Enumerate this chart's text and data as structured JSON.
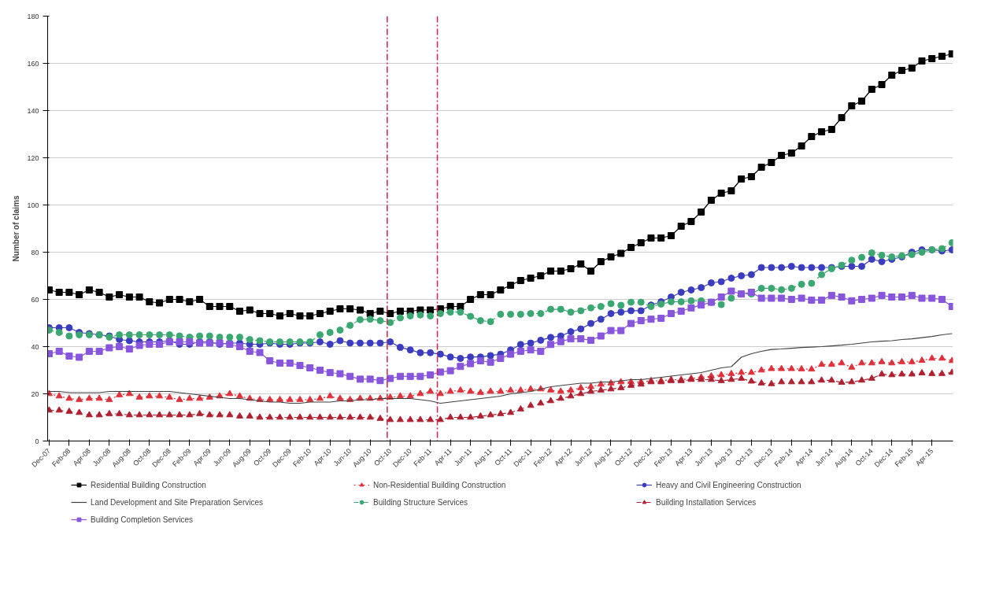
{
  "chart_data": {
    "type": "line",
    "ylabel": "Number of claims",
    "x": [
      "2007-12",
      "2008-01",
      "2008-02",
      "2008-03",
      "2008-04",
      "2008-05",
      "2008-06",
      "2008-07",
      "2008-08",
      "2008-09",
      "2008-10",
      "2008-11",
      "2008-12",
      "2009-01",
      "2009-02",
      "2009-03",
      "2009-04",
      "2009-05",
      "2009-06",
      "2009-07",
      "2009-08",
      "2009-09",
      "2009-10",
      "2009-11",
      "2009-12",
      "2010-01",
      "2010-02",
      "2010-03",
      "2010-04",
      "2010-05",
      "2010-06",
      "2010-07",
      "2010-08",
      "2010-09",
      "2010-10",
      "2010-11",
      "2010-12",
      "2011-01",
      "2011-02",
      "2011-03",
      "2011-04",
      "2011-05",
      "2011-06",
      "2011-07",
      "2011-08",
      "2011-09",
      "2011-10",
      "2011-11",
      "2011-12",
      "2012-01",
      "2012-02",
      "2012-03",
      "2012-04",
      "2012-05",
      "2012-06",
      "2012-07",
      "2012-08",
      "2012-09",
      "2012-10",
      "2012-11",
      "2012-12",
      "2013-01",
      "2013-02",
      "2013-03",
      "2013-04",
      "2013-05",
      "2013-06",
      "2013-07",
      "2013-08",
      "2013-09",
      "2013-10",
      "2013-11",
      "2013-12",
      "2014-01",
      "2014-02",
      "2014-03",
      "2014-04",
      "2014-05",
      "2014-06",
      "2014-07",
      "2014-08",
      "2014-09",
      "2014-10",
      "2014-11",
      "2014-12",
      "2015-01",
      "2015-02",
      "2015-03",
      "2015-04",
      "2015-05",
      "2015-06"
    ],
    "xlim": [
      "2007-12",
      "2015-06"
    ],
    "xticks": [
      {
        "value": "2007-12",
        "label": "Dec-07"
      },
      {
        "value": "2008-02",
        "label": "Feb-08"
      },
      {
        "value": "2008-04",
        "label": "Apr-08"
      },
      {
        "value": "2008-06",
        "label": "Jun-08"
      },
      {
        "value": "2008-08",
        "label": "Aug-08"
      },
      {
        "value": "2008-10",
        "label": "Oct-08"
      },
      {
        "value": "2008-12",
        "label": "Dec-08"
      },
      {
        "value": "2009-02",
        "label": "Feb-09"
      },
      {
        "value": "2009-04",
        "label": "Apr-09"
      },
      {
        "value": "2009-06",
        "label": "Jun-09"
      },
      {
        "value": "2009-08",
        "label": "Aug-09"
      },
      {
        "value": "2009-10",
        "label": "Oct-09"
      },
      {
        "value": "2009-12",
        "label": "Dec-09"
      },
      {
        "value": "2010-02",
        "label": "Feb-10"
      },
      {
        "value": "2010-04",
        "label": "Apr-10"
      },
      {
        "value": "2010-06",
        "label": "Jun-10"
      },
      {
        "value": "2010-08",
        "label": "Aug-10"
      },
      {
        "value": "2010-10",
        "label": "Oct-10"
      },
      {
        "value": "2010-12",
        "label": "Dec-10"
      },
      {
        "value": "2011-02",
        "label": "Feb-11"
      },
      {
        "value": "2011-04",
        "label": "Apr-11"
      },
      {
        "value": "2011-06",
        "label": "Jun-11"
      },
      {
        "value": "2011-08",
        "label": "Aug-11"
      },
      {
        "value": "2011-10",
        "label": "Oct-11"
      },
      {
        "value": "2011-12",
        "label": "Dec-11"
      },
      {
        "value": "2012-02",
        "label": "Feb-12"
      },
      {
        "value": "2012-04",
        "label": "Apr-12"
      },
      {
        "value": "2012-06",
        "label": "Jun-12"
      },
      {
        "value": "2012-08",
        "label": "Aug-12"
      },
      {
        "value": "2012-10",
        "label": "Oct-12"
      },
      {
        "value": "2012-12",
        "label": "Dec-12"
      },
      {
        "value": "2013-02",
        "label": "Feb-13"
      },
      {
        "value": "2013-04",
        "label": "Apr-13"
      },
      {
        "value": "2013-06",
        "label": "Jun-13"
      },
      {
        "value": "2013-08",
        "label": "Aug-13"
      },
      {
        "value": "2013-10",
        "label": "Oct-13"
      },
      {
        "value": "2013-12",
        "label": "Dec-13"
      },
      {
        "value": "2014-02",
        "label": "Feb-14"
      },
      {
        "value": "2014-04",
        "label": "Apr-14"
      },
      {
        "value": "2014-06",
        "label": "Jun-14"
      },
      {
        "value": "2014-08",
        "label": "Aug-14"
      },
      {
        "value": "2014-10",
        "label": "Oct-14"
      },
      {
        "value": "2014-12",
        "label": "Dec-14"
      },
      {
        "value": "2015-02",
        "label": "Feb-15"
      },
      {
        "value": "2015-04",
        "label": "Apr-15"
      }
    ],
    "ylim": [
      0,
      180
    ],
    "yticks": [
      0,
      20,
      40,
      60,
      80,
      100,
      120,
      140,
      160,
      180
    ],
    "grid": "y",
    "legend": "bottom",
    "ref_lines": [
      {
        "axis": "x",
        "value": "2010-09-22",
        "color": "#cc2244",
        "line_style": "dashed"
      },
      {
        "axis": "x",
        "value": "2011-02-22",
        "color": "#cc2244",
        "line_style": "dashed"
      }
    ],
    "series": [
      {
        "name": "Residential Building Construction",
        "color": "#000000",
        "marker": "square",
        "line_style": "solid",
        "values": [
          64,
          63,
          63,
          62,
          64,
          63,
          61,
          62,
          61,
          61,
          59,
          58.5,
          60,
          60,
          59,
          60,
          57,
          57,
          57,
          55,
          55.5,
          54,
          54,
          53,
          54,
          53,
          53,
          54,
          55,
          56,
          56,
          55.5,
          54,
          55,
          54,
          55,
          55,
          55.5,
          55.5,
          56,
          57,
          57,
          60,
          62,
          62,
          64,
          66,
          68,
          69,
          70,
          72,
          72,
          73,
          75,
          72,
          76,
          78,
          79.5,
          82,
          84,
          86,
          86,
          87,
          91,
          93,
          97,
          102,
          105,
          106,
          111,
          112,
          116,
          118,
          121,
          122,
          125,
          129,
          131,
          132,
          137,
          142,
          144,
          149,
          151,
          155,
          157,
          158,
          161,
          162,
          163,
          164
        ]
      },
      {
        "name": "Non-Residential Building Construction",
        "color": "#e0303a",
        "marker": "triangle",
        "line_style": "dotted",
        "values": [
          20,
          19,
          18,
          17.5,
          18,
          18,
          17.5,
          19.5,
          20,
          18.5,
          19,
          19,
          18.5,
          17.5,
          18,
          18,
          18.5,
          19,
          20,
          19,
          18,
          17.5,
          17.5,
          17.5,
          17.5,
          17.5,
          17.5,
          18,
          19,
          18,
          17.5,
          18,
          18,
          18,
          18.5,
          19,
          19,
          20,
          21,
          20,
          21,
          21.5,
          21,
          20.5,
          21,
          21,
          21.5,
          21.5,
          22,
          22,
          21.5,
          21,
          21.5,
          22.5,
          23,
          24,
          24.5,
          25,
          25,
          25,
          25.5,
          25.5,
          26,
          26,
          26.5,
          27,
          27.5,
          28,
          28.5,
          29,
          29,
          30,
          30.6,
          30.6,
          30.6,
          30.5,
          30.4,
          32.4,
          32.4,
          33,
          31.2,
          33,
          33,
          33.5,
          33,
          33.5,
          33.5,
          34.1,
          35,
          35,
          34
        ]
      },
      {
        "name": "Heavy and Civil Engineering Construction",
        "color": "#3c3cc0",
        "marker": "circle",
        "line_style": "solid",
        "values": [
          48,
          48,
          48,
          46,
          45.5,
          45,
          44.5,
          43,
          42.5,
          42,
          42,
          42,
          42.5,
          41,
          41,
          42,
          42,
          41,
          41.5,
          41.5,
          41,
          41,
          41.5,
          41,
          41,
          41.5,
          41.5,
          42,
          41,
          42.5,
          41.5,
          41.5,
          41.5,
          41.5,
          42,
          39.7,
          38.6,
          37.4,
          37.4,
          36.8,
          35.6,
          35,
          35.6,
          35.6,
          36.2,
          36.8,
          38.6,
          40.9,
          41.5,
          42.7,
          43.9,
          44.5,
          46.3,
          47.5,
          49.8,
          51.6,
          54,
          54.6,
          55.2,
          55.2,
          57.6,
          59,
          61,
          63,
          64,
          65,
          67,
          67.5,
          69,
          70,
          70.5,
          73.5,
          73.5,
          73.5,
          74,
          73.5,
          73.5,
          73.5,
          73.5,
          74,
          74,
          74,
          77,
          76,
          77,
          78,
          80,
          81,
          81,
          80.5,
          81
        ]
      },
      {
        "name": "Land Development and Site Preparation Services",
        "color": "#404040",
        "marker": "none",
        "line_style": "solid",
        "values": [
          21,
          21,
          20.5,
          20.5,
          20.5,
          20.5,
          21,
          21,
          21,
          21,
          21,
          21,
          21,
          20.5,
          20,
          19.5,
          19,
          18.5,
          18,
          18,
          17.5,
          17,
          16.5,
          16.5,
          16,
          16,
          16.5,
          16.5,
          16.5,
          17,
          17,
          17.5,
          17.5,
          18,
          18,
          18,
          18,
          17.5,
          17,
          16,
          16.5,
          17,
          17.5,
          18,
          18.5,
          19,
          20,
          20.5,
          21,
          22,
          23,
          23.5,
          24,
          24.5,
          24.5,
          25,
          25,
          25.5,
          26,
          26,
          26.5,
          27,
          27.5,
          28,
          28.5,
          29,
          30,
          31,
          31.5,
          35.5,
          37,
          38,
          38.8,
          39,
          39.3,
          39.6,
          39.8,
          40,
          40.3,
          40.6,
          41,
          41.5,
          42,
          42.3,
          42.5,
          43,
          43.3,
          43.8,
          44.3,
          45,
          45.5
        ]
      },
      {
        "name": "Building Structure Services",
        "color": "#3aa870",
        "marker": "circle",
        "line_style": "dashed",
        "values": [
          47,
          46,
          44.5,
          45,
          45,
          45,
          44,
          45,
          45,
          45,
          45,
          45,
          45,
          44.5,
          44,
          44.5,
          44.5,
          44,
          44,
          44,
          43,
          42.5,
          42,
          42,
          42,
          42,
          42,
          45,
          46,
          47,
          49,
          51.4,
          51.6,
          51,
          50.2,
          52.2,
          53,
          53.4,
          53,
          54,
          54.6,
          54.6,
          52.8,
          51,
          50.6,
          53.7,
          53.7,
          53.7,
          54,
          54,
          55.8,
          55.8,
          54.6,
          55.2,
          56.4,
          57,
          58.2,
          57.5,
          58.8,
          58.8,
          57,
          58,
          59,
          59,
          59.4,
          59.4,
          58.8,
          57.8,
          60.5,
          62.3,
          62.3,
          64.7,
          64.7,
          64.1,
          64.7,
          66.4,
          66.8,
          70.5,
          73,
          74.5,
          76.6,
          77.8,
          79.7,
          78.7,
          78,
          78.5,
          79,
          80,
          81,
          81.5,
          84
        ]
      },
      {
        "name": "Building Installation Services",
        "color": "#b02030",
        "marker": "triangle",
        "line_style": "dashed",
        "values": [
          13,
          13,
          12.5,
          12,
          11,
          11,
          11.5,
          11.5,
          11,
          11,
          11,
          11,
          11,
          11,
          11,
          11.5,
          11,
          11,
          11,
          10.5,
          10.5,
          10,
          10,
          10,
          10,
          10,
          10,
          10,
          10,
          10,
          10,
          10,
          10,
          9.5,
          9,
          9,
          9,
          9,
          9,
          9,
          10,
          10,
          10,
          10.5,
          11,
          11.5,
          12,
          13.5,
          15,
          16,
          17,
          18,
          19,
          20,
          21,
          21.5,
          22,
          22.5,
          23.5,
          24,
          25,
          25,
          25.5,
          25.5,
          26,
          26,
          26,
          25.5,
          26,
          26.5,
          25.3,
          24.5,
          24.2,
          25,
          25,
          25,
          25,
          25.7,
          25.7,
          24.8,
          25,
          25.7,
          26.5,
          28.3,
          28,
          28.3,
          28.3,
          28.8,
          28.5,
          28.5,
          29
        ]
      },
      {
        "name": "Building Completion Services",
        "color": "#8855dd",
        "marker": "square",
        "line_style": "solid",
        "values": [
          37,
          38,
          36,
          35.5,
          38,
          38,
          39.5,
          40,
          39,
          40.5,
          41,
          41,
          42,
          42,
          42,
          41.5,
          41.5,
          41.5,
          41,
          40,
          38,
          37.5,
          34,
          33,
          33,
          32,
          31,
          30,
          29,
          28.5,
          27.4,
          26.2,
          26.2,
          25.6,
          26.5,
          27.4,
          27.4,
          27.4,
          28,
          29.2,
          29.8,
          31.6,
          32.8,
          34,
          33.4,
          35,
          36.8,
          38,
          38.6,
          38,
          40.9,
          42.1,
          43.3,
          43.3,
          42.7,
          44.5,
          46.8,
          46.8,
          49.8,
          51,
          51.6,
          52,
          54,
          55,
          56.4,
          57.6,
          58.8,
          61,
          63.5,
          62.3,
          63,
          60.5,
          60.5,
          60.5,
          60,
          60.5,
          59.7,
          59.7,
          61.7,
          61,
          59.4,
          60,
          60.5,
          61.7,
          61,
          61,
          61.7,
          60.5,
          60.5,
          60,
          57
        ]
      }
    ]
  }
}
